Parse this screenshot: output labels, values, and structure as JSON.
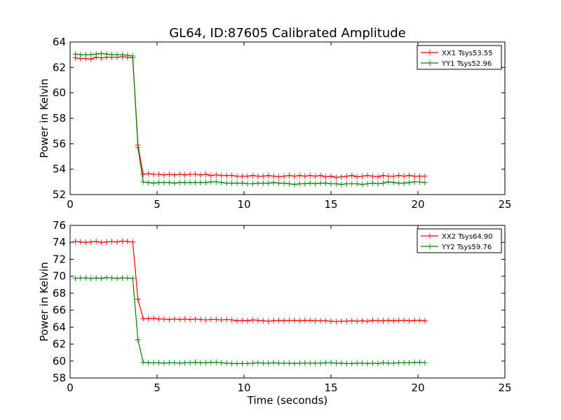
{
  "title": "GL64, ID:87605 Calibrated Amplitude",
  "chart_data": [
    {
      "type": "line",
      "title": "GL64, ID:87605 Calibrated Amplitude",
      "xlabel": "",
      "ylabel": "Power in Kelvin",
      "xlim": [
        0,
        25
      ],
      "ylim": [
        52,
        64
      ],
      "xticks": [
        0,
        5,
        10,
        15,
        20,
        25
      ],
      "yticks": [
        52,
        54,
        56,
        58,
        60,
        62,
        64
      ],
      "grid": false,
      "legend_position": "top-right",
      "x": [
        0.3,
        0.6,
        0.9,
        1.2,
        1.5,
        1.8,
        2.1,
        2.4,
        2.7,
        3.0,
        3.3,
        3.6,
        3.9,
        4.2,
        4.5,
        4.8,
        5.1,
        5.4,
        5.7,
        6.0,
        6.3,
        6.6,
        6.9,
        7.2,
        7.5,
        7.8,
        8.1,
        8.4,
        8.7,
        9.0,
        9.3,
        9.6,
        9.9,
        10.2,
        10.5,
        10.8,
        11.1,
        11.4,
        11.7,
        12.0,
        12.3,
        12.6,
        12.9,
        13.2,
        13.5,
        13.8,
        14.1,
        14.4,
        14.7,
        15.0,
        15.3,
        15.6,
        15.9,
        16.2,
        16.5,
        16.8,
        17.1,
        17.4,
        17.7,
        18.0,
        18.3,
        18.6,
        18.9,
        19.2,
        19.5,
        19.8,
        20.1,
        20.4
      ],
      "series": [
        {
          "name": "XX1 Tsys53.55",
          "color": "#ff0000",
          "values": [
            62.75,
            62.7,
            62.7,
            62.65,
            62.8,
            62.75,
            62.8,
            62.8,
            62.8,
            62.85,
            62.8,
            62.75,
            55.9,
            53.6,
            53.65,
            53.6,
            53.6,
            53.55,
            53.6,
            53.55,
            53.6,
            53.55,
            53.6,
            53.6,
            53.55,
            53.6,
            53.5,
            53.55,
            53.5,
            53.5,
            53.5,
            53.45,
            53.45,
            53.45,
            53.5,
            53.45,
            53.45,
            53.5,
            53.45,
            53.4,
            53.45,
            53.5,
            53.45,
            53.5,
            53.45,
            53.5,
            53.45,
            53.5,
            53.4,
            53.45,
            53.35,
            53.4,
            53.45,
            53.5,
            53.4,
            53.45,
            53.5,
            53.45,
            53.4,
            53.5,
            53.45,
            53.45,
            53.5,
            53.45,
            53.5,
            53.45,
            53.45,
            53.45
          ]
        },
        {
          "name": "YY1 Tsys52.96",
          "color": "#008000",
          "values": [
            63.05,
            63.0,
            63.0,
            63.0,
            63.05,
            63.1,
            63.05,
            63.0,
            63.0,
            63.0,
            62.95,
            62.9,
            55.7,
            53.0,
            52.95,
            52.9,
            52.95,
            52.95,
            52.95,
            52.9,
            52.95,
            52.95,
            52.95,
            52.95,
            52.95,
            52.95,
            53.0,
            53.0,
            52.95,
            52.9,
            52.9,
            52.9,
            52.9,
            52.85,
            52.85,
            52.9,
            52.9,
            52.9,
            52.95,
            52.9,
            52.9,
            52.85,
            52.8,
            52.85,
            52.85,
            52.9,
            52.85,
            52.9,
            52.9,
            52.85,
            52.85,
            52.8,
            52.85,
            52.85,
            52.85,
            52.8,
            52.85,
            52.9,
            52.85,
            52.9,
            53.0,
            52.95,
            52.9,
            52.9,
            52.95,
            53.0,
            53.0,
            52.95
          ]
        }
      ]
    },
    {
      "type": "line",
      "title": "",
      "xlabel": "Time (seconds)",
      "ylabel": "Power in Kelvin",
      "xlim": [
        0,
        25
      ],
      "ylim": [
        58,
        76
      ],
      "xticks": [
        0,
        5,
        10,
        15,
        20,
        25
      ],
      "yticks": [
        58,
        60,
        62,
        64,
        66,
        68,
        70,
        72,
        74,
        76
      ],
      "grid": false,
      "legend_position": "top-right",
      "x": [
        0.3,
        0.6,
        0.9,
        1.2,
        1.5,
        1.8,
        2.1,
        2.4,
        2.7,
        3.0,
        3.3,
        3.6,
        3.9,
        4.2,
        4.5,
        4.8,
        5.1,
        5.4,
        5.7,
        6.0,
        6.3,
        6.6,
        6.9,
        7.2,
        7.5,
        7.8,
        8.1,
        8.4,
        8.7,
        9.0,
        9.3,
        9.6,
        9.9,
        10.2,
        10.5,
        10.8,
        11.1,
        11.4,
        11.7,
        12.0,
        12.3,
        12.6,
        12.9,
        13.2,
        13.5,
        13.8,
        14.1,
        14.4,
        14.7,
        15.0,
        15.3,
        15.6,
        15.9,
        16.2,
        16.5,
        16.8,
        17.1,
        17.4,
        17.7,
        18.0,
        18.3,
        18.6,
        18.9,
        19.2,
        19.5,
        19.8,
        20.1,
        20.4
      ],
      "series": [
        {
          "name": "XX2 Tsys64.90",
          "color": "#ff0000",
          "values": [
            74.1,
            74.05,
            74.0,
            74.05,
            74.1,
            74.0,
            74.05,
            74.1,
            74.05,
            74.15,
            74.1,
            74.05,
            67.3,
            65.0,
            65.0,
            65.05,
            64.95,
            64.95,
            64.9,
            64.95,
            64.9,
            64.95,
            64.9,
            64.95,
            64.9,
            64.85,
            64.9,
            64.9,
            64.85,
            64.9,
            64.85,
            64.75,
            64.8,
            64.75,
            64.85,
            64.8,
            64.75,
            64.7,
            64.75,
            64.8,
            64.75,
            64.8,
            64.8,
            64.75,
            64.8,
            64.8,
            64.75,
            64.75,
            64.75,
            64.7,
            64.65,
            64.7,
            64.7,
            64.75,
            64.7,
            64.75,
            64.7,
            64.8,
            64.75,
            64.75,
            64.8,
            64.75,
            64.8,
            64.8,
            64.75,
            64.8,
            64.8,
            64.75
          ]
        },
        {
          "name": "YY2 Tsys59.76",
          "color": "#008000",
          "values": [
            69.75,
            69.8,
            69.8,
            69.75,
            69.8,
            69.75,
            69.85,
            69.8,
            69.75,
            69.8,
            69.8,
            69.75,
            62.5,
            59.85,
            59.8,
            59.8,
            59.8,
            59.75,
            59.8,
            59.8,
            59.75,
            59.8,
            59.8,
            59.85,
            59.8,
            59.8,
            59.85,
            59.85,
            59.8,
            59.75,
            59.7,
            59.7,
            59.7,
            59.7,
            59.75,
            59.8,
            59.75,
            59.75,
            59.8,
            59.75,
            59.75,
            59.75,
            59.7,
            59.75,
            59.75,
            59.75,
            59.75,
            59.75,
            59.8,
            59.8,
            59.75,
            59.75,
            59.7,
            59.7,
            59.75,
            59.75,
            59.7,
            59.75,
            59.7,
            59.8,
            59.75,
            59.75,
            59.8,
            59.8,
            59.8,
            59.85,
            59.85,
            59.8
          ]
        }
      ]
    }
  ]
}
